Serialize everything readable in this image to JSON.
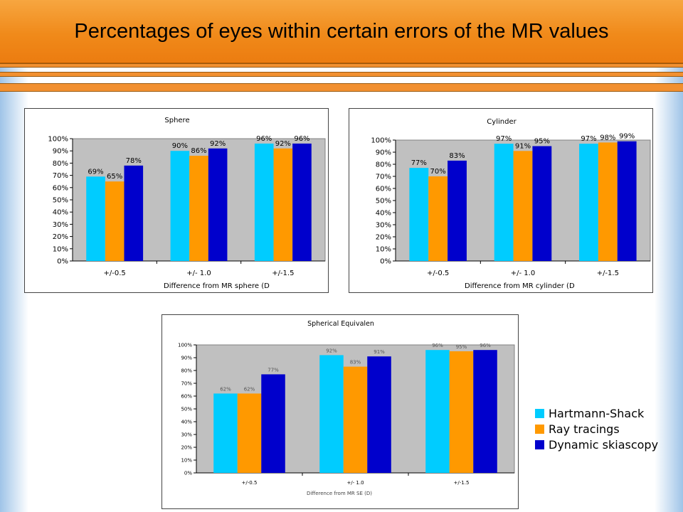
{
  "slide": {
    "title": "Percentages of eyes within certain errors of the MR values"
  },
  "colors": {
    "hartmann": "#00ccff",
    "ray": "#ff9900",
    "dynamic": "#0000cc",
    "plot_bg": "#c0c0c0"
  },
  "legend": {
    "items": [
      {
        "label": "Hartmann-Shack",
        "color": "#00ccff"
      },
      {
        "label": "Ray tracings",
        "color": "#ff9900"
      },
      {
        "label": "Dynamic skiascopy",
        "color": "#0000cc"
      }
    ]
  },
  "chart_data": [
    {
      "type": "bar",
      "title": "Sphere",
      "xlabel": "Difference from MR sphere (D",
      "ylabel": "",
      "ylim": [
        0,
        100
      ],
      "yticks": [
        "0%",
        "10%",
        "20%",
        "30%",
        "40%",
        "50%",
        "60%",
        "70%",
        "80%",
        "90%",
        "100%"
      ],
      "categories": [
        "+/-0.5",
        "+/- 1.0",
        "+/-1.5"
      ],
      "series": [
        {
          "name": "Hartmann-Shack",
          "values": [
            69,
            90,
            96
          ],
          "labels": [
            "69%",
            "90%",
            "96%"
          ]
        },
        {
          "name": "Ray tracings",
          "values": [
            65,
            86,
            92
          ],
          "labels": [
            "65%",
            "86%",
            "92%"
          ]
        },
        {
          "name": "Dynamic skiascopy",
          "values": [
            78,
            92,
            96
          ],
          "labels": [
            "78%",
            "92%",
            "96%"
          ]
        }
      ],
      "grid": false
    },
    {
      "type": "bar",
      "title": "Cylinder",
      "xlabel": "Difference from MR cylinder (D",
      "ylabel": "",
      "ylim": [
        0,
        100
      ],
      "yticks": [
        "0%",
        "10%",
        "20%",
        "30%",
        "40%",
        "50%",
        "60%",
        "70%",
        "80%",
        "90%",
        "100%"
      ],
      "categories": [
        "+/-0.5",
        "+/- 1.0",
        "+/-1.5"
      ],
      "series": [
        {
          "name": "Hartmann-Shack",
          "values": [
            77,
            97,
            97
          ],
          "labels": [
            "77%",
            "97%",
            "97%"
          ]
        },
        {
          "name": "Ray tracings",
          "values": [
            70,
            91,
            98
          ],
          "labels": [
            "70%",
            "91%",
            "98%"
          ]
        },
        {
          "name": "Dynamic skiascopy",
          "values": [
            83,
            95,
            99
          ],
          "labels": [
            "83%",
            "95%",
            "99%"
          ]
        }
      ],
      "grid": false
    },
    {
      "type": "bar",
      "title": "Spherical Equivalen",
      "xlabel": "Difference from MR SE (D)",
      "ylabel": "",
      "ylim": [
        0,
        100
      ],
      "yticks": [
        "0%",
        "10%",
        "20%",
        "30%",
        "40%",
        "50%",
        "60%",
        "70%",
        "80%",
        "90%",
        "100%"
      ],
      "categories": [
        "+/-0.5",
        "+/- 1.0",
        "+/-1.5"
      ],
      "series": [
        {
          "name": "Hartmann-Shack",
          "values": [
            62,
            92,
            96
          ],
          "labels": [
            "62%",
            "92%",
            "96%"
          ]
        },
        {
          "name": "Ray tracings",
          "values": [
            62,
            83,
            95
          ],
          "labels": [
            "62%",
            "83%",
            "95%"
          ]
        },
        {
          "name": "Dynamic skiascopy",
          "values": [
            77,
            91,
            96
          ],
          "labels": [
            "77%",
            "91%",
            "96%"
          ]
        }
      ],
      "legend_position": "right",
      "grid": false
    }
  ]
}
